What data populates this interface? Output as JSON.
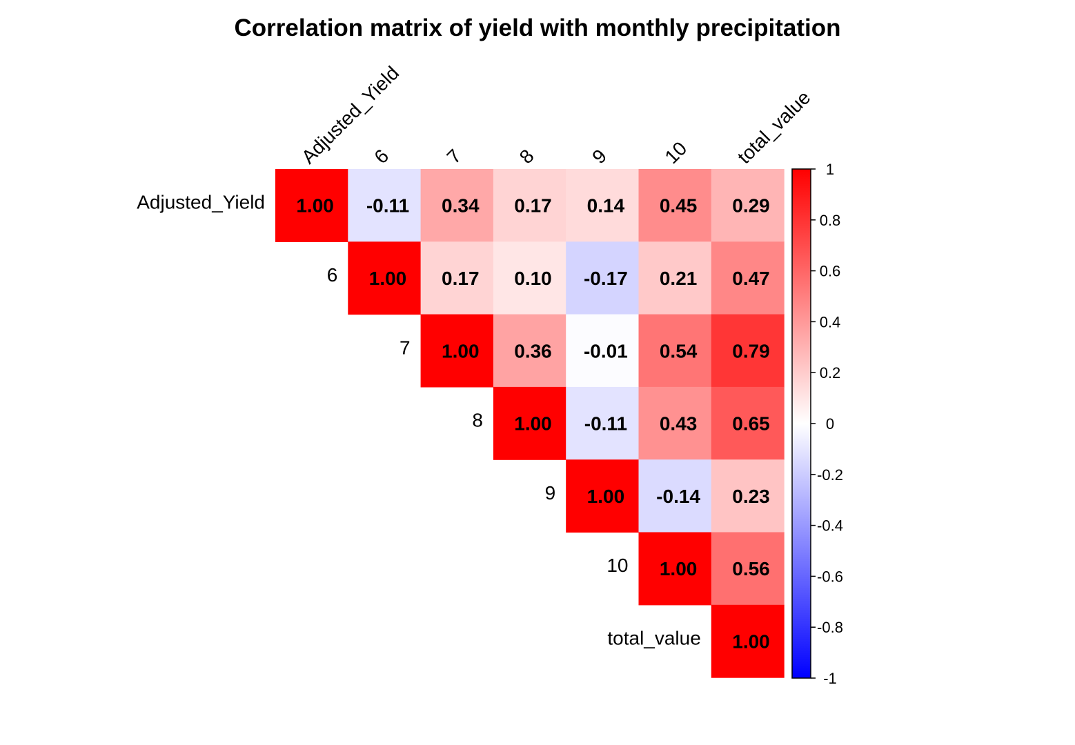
{
  "chart_data": {
    "type": "heatmap",
    "title": "Correlation matrix of yield with  monthly precipitation",
    "variables": [
      "Adjusted_Yield",
      "6",
      "7",
      "8",
      "9",
      "10",
      "total_value"
    ],
    "matrix": [
      [
        1.0,
        -0.11,
        0.34,
        0.17,
        0.14,
        0.45,
        0.29
      ],
      [
        -0.11,
        1.0,
        0.17,
        0.1,
        -0.17,
        0.21,
        0.47
      ],
      [
        0.34,
        0.17,
        1.0,
        0.36,
        -0.01,
        0.54,
        0.79
      ],
      [
        0.17,
        0.1,
        0.36,
        1.0,
        -0.11,
        0.43,
        0.65
      ],
      [
        0.14,
        -0.17,
        -0.01,
        -0.11,
        1.0,
        -0.14,
        0.23
      ],
      [
        0.45,
        0.21,
        0.54,
        0.43,
        -0.14,
        1.0,
        0.56
      ],
      [
        0.29,
        0.47,
        0.79,
        0.65,
        0.23,
        0.56,
        1.0
      ]
    ],
    "display": "upper",
    "value_format": "2 decimals",
    "color_scale": {
      "min": -1,
      "max": 1,
      "low_color": "#0000FF",
      "mid_color": "#FFFFFF",
      "high_color": "#FF0000",
      "ticks": [
        "1",
        "0.8",
        "0.6",
        "0.4",
        "0.2",
        "0",
        "-0.2",
        "-0.4",
        "-0.6",
        "-0.8",
        "-1"
      ]
    },
    "legend_position": "right"
  }
}
